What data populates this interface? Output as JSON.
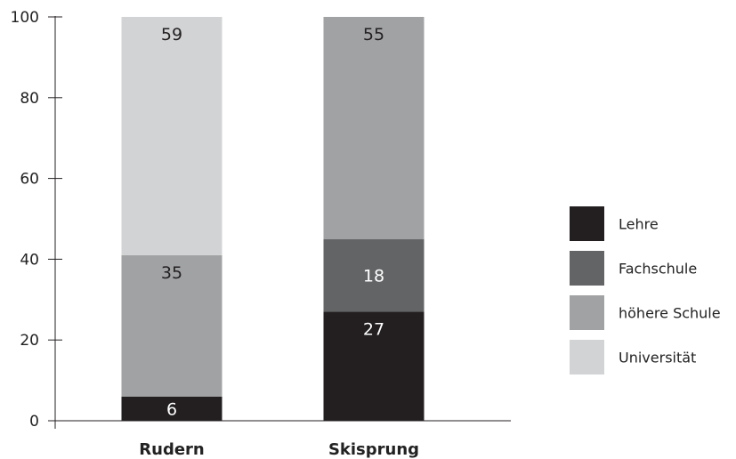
{
  "chart_data": {
    "type": "bar",
    "stacked": true,
    "categories": [
      "Rudern",
      "Skisprung"
    ],
    "series": [
      {
        "name": "Lehre",
        "values": [
          6,
          27
        ],
        "color": "#231f20",
        "label_color": "#ffffff"
      },
      {
        "name": "Fachschule",
        "values": [
          0,
          18
        ],
        "color": "#636466",
        "label_color": "#ffffff"
      },
      {
        "name": "höhere Schule",
        "values": [
          35,
          55
        ],
        "color": "#a0a2a4",
        "label_color": "#231f20"
      },
      {
        "name": "Universität",
        "values": [
          59,
          0
        ],
        "color": "#d1d3d4",
        "label_color": "#231f20"
      }
    ],
    "ylim": [
      0,
      100
    ],
    "yticks": [
      0,
      20,
      40,
      60,
      80,
      100
    ],
    "legend_position": "right",
    "grid": false
  }
}
